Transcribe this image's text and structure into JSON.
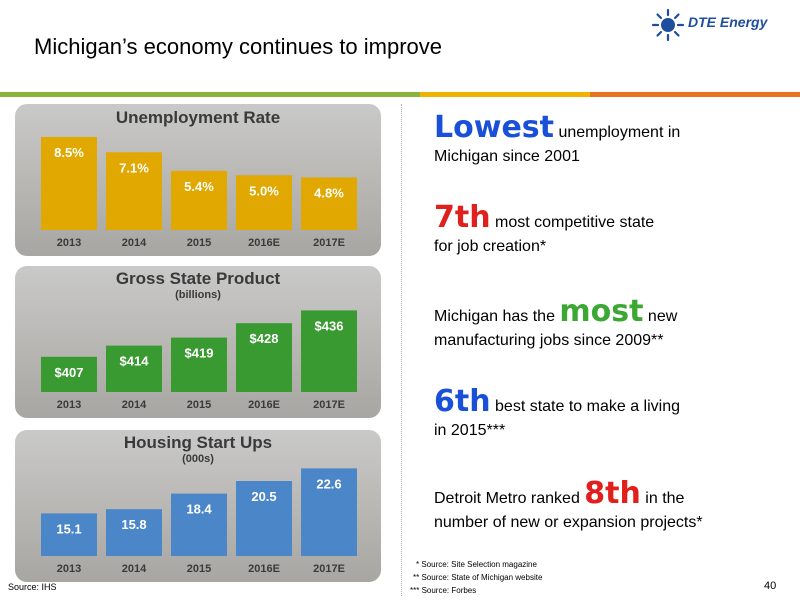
{
  "title": "Michigan’s economy continues to improve",
  "logo": {
    "text": "DTE Energy",
    "icon": "dte-logo-icon",
    "color": "#1f4e9c"
  },
  "stripes": [
    {
      "color": "#8ab43c"
    },
    {
      "color": "#f0b400"
    },
    {
      "color": "#e8741c"
    }
  ],
  "chart_data": [
    {
      "type": "bar",
      "title": "Unemployment Rate",
      "subtitle": "",
      "categories": [
        "2013",
        "2014",
        "2015",
        "2016E",
        "2017E"
      ],
      "values": [
        8.5,
        7.1,
        5.4,
        5.0,
        4.8
      ],
      "value_labels": [
        "8.5%",
        "7.1%",
        "5.4%",
        "5.0%",
        "4.8%"
      ],
      "color": "#e0a800",
      "ylim": [
        0,
        9.5
      ]
    },
    {
      "type": "bar",
      "title": "Gross State Product",
      "subtitle": "(billions)",
      "categories": [
        "2013",
        "2014",
        "2015",
        "2016E",
        "2017E"
      ],
      "values": [
        407,
        414,
        419,
        428,
        436
      ],
      "value_labels": [
        "$407",
        "$414",
        "$419",
        "$428",
        "$436"
      ],
      "color": "#3a9a32",
      "ylim": [
        385,
        445
      ]
    },
    {
      "type": "bar",
      "title": "Housing Start Ups",
      "subtitle": "(000s)",
      "categories": [
        "2013",
        "2014",
        "2015",
        "2016E",
        "2017E"
      ],
      "values": [
        15.1,
        15.8,
        18.4,
        20.5,
        22.6
      ],
      "value_labels": [
        "15.1",
        "15.8",
        "18.4",
        "20.5",
        "22.6"
      ],
      "color": "#4a86c8",
      "ylim": [
        8,
        24
      ]
    }
  ],
  "facts": [
    {
      "pre": "",
      "big": "Lowest",
      "big_color": "#1a4fd8",
      "post": " unemployment in",
      "line2": "Michigan since 2001"
    },
    {
      "pre": "",
      "big": "7th",
      "big_color": "#e0201c",
      "post": " most competitive state",
      "line2": "for job creation*"
    },
    {
      "pre": "Michigan has the ",
      "big": "most",
      "big_color": "#3aa832",
      "post": " new",
      "line2": "manufacturing jobs since 2009**"
    },
    {
      "pre": "",
      "big": "6th",
      "big_color": "#1a4fd8",
      "post": " best state to make a living",
      "line2": "in 2015***"
    },
    {
      "pre": "Detroit Metro ranked ",
      "big": "8th",
      "big_color": "#e0201c",
      "post": " in the",
      "line2": "number of new or expansion projects*"
    }
  ],
  "notes": [
    "* Source: Site Selection magazine",
    "** Source: State of Michigan website",
    "*** Source: Forbes"
  ],
  "source": "Source: IHS",
  "page_number": "40"
}
